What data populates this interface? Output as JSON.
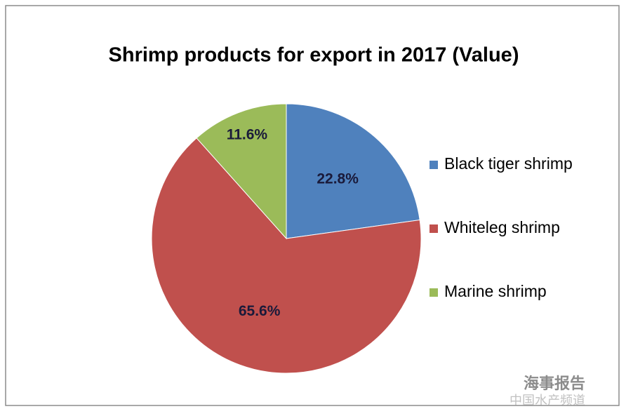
{
  "chart_data": {
    "type": "pie",
    "title": "Shrimp products for export in 2017 (Value)",
    "categories": [
      "Black tiger shrimp",
      "Whiteleg shrimp",
      "Marine shrimp"
    ],
    "values": [
      22.8,
      65.6,
      11.6
    ],
    "value_labels": [
      "22.8%",
      "65.6%",
      "11.6%"
    ],
    "colors": [
      "#4f81bd",
      "#c0504d",
      "#9bbb59"
    ],
    "legend": "right"
  },
  "watermark": {
    "account": "海事报告",
    "site": "中国水产频道"
  }
}
